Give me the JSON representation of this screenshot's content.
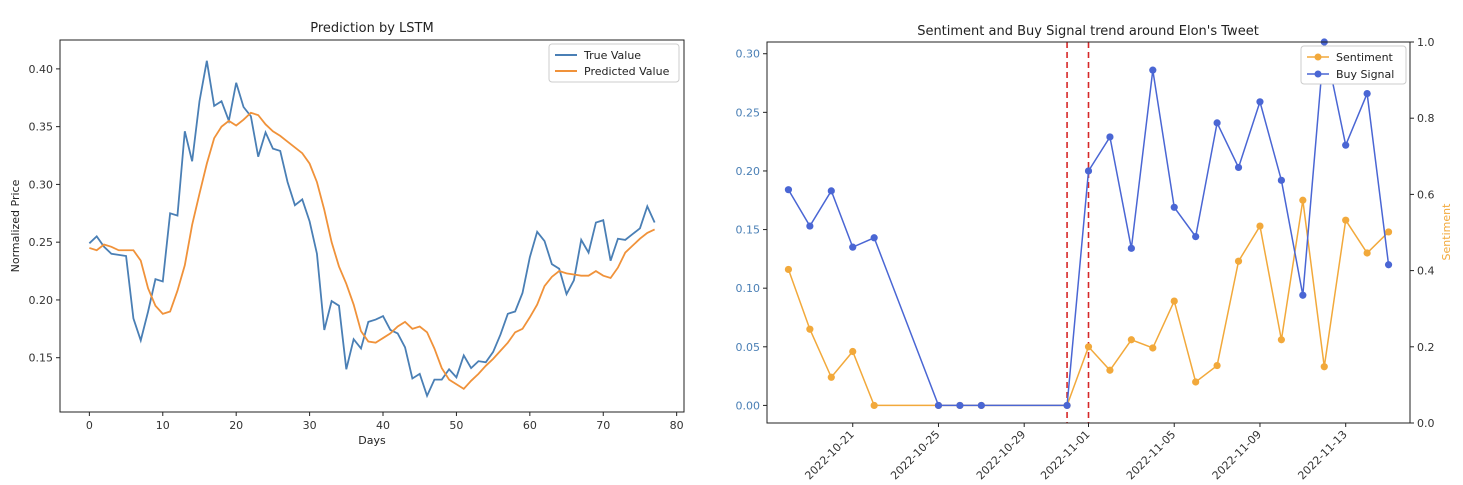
{
  "colors": {
    "true_value": "#4a7fb5",
    "predicted_value": "#f0923a",
    "sentiment": "#f2a93b",
    "buy_signal": "#4a66d4",
    "event_line": "#d62728",
    "left_axis_ticks": "#4a7fb5",
    "right_axis_label": "#f2a93b"
  },
  "chart_data": [
    {
      "type": "line",
      "title": "Prediction by LSTM",
      "xlabel": "Days",
      "ylabel": "Normalized Price",
      "xlim": [
        -4,
        81
      ],
      "ylim": [
        0.103,
        0.425
      ],
      "xticks": [
        0,
        10,
        20,
        30,
        40,
        50,
        60,
        70,
        80
      ],
      "yticks": [
        0.15,
        0.2,
        0.25,
        0.3,
        0.35,
        0.4
      ],
      "ytick_labels": [
        "0.15",
        "0.20",
        "0.25",
        "0.30",
        "0.35",
        "0.40"
      ],
      "legend_position": "top-right",
      "grid": false,
      "series": [
        {
          "name": "True Value",
          "color_key": "true_value",
          "x": [
            0,
            1,
            2,
            3,
            4,
            5,
            6,
            7,
            8,
            9,
            10,
            11,
            12,
            13,
            14,
            15,
            16,
            17,
            18,
            19,
            20,
            21,
            22,
            23,
            24,
            25,
            26,
            27,
            28,
            29,
            30,
            31,
            32,
            33,
            34,
            35,
            36,
            37,
            38,
            39,
            40,
            41,
            42,
            43,
            44,
            45,
            46,
            47,
            48,
            49,
            50,
            51,
            52,
            53,
            54,
            55,
            56,
            57,
            58,
            59,
            60,
            61,
            62,
            63,
            64,
            65,
            66,
            67,
            68,
            69,
            70,
            71,
            72,
            73,
            74,
            75,
            76,
            77
          ],
          "values": [
            0.249,
            0.255,
            0.246,
            0.24,
            0.239,
            0.238,
            0.184,
            0.165,
            0.19,
            0.218,
            0.216,
            0.275,
            0.273,
            0.346,
            0.32,
            0.372,
            0.407,
            0.368,
            0.372,
            0.355,
            0.388,
            0.367,
            0.359,
            0.324,
            0.345,
            0.331,
            0.329,
            0.302,
            0.282,
            0.287,
            0.268,
            0.24,
            0.174,
            0.199,
            0.195,
            0.14,
            0.166,
            0.158,
            0.181,
            0.183,
            0.186,
            0.174,
            0.171,
            0.159,
            0.132,
            0.136,
            0.117,
            0.131,
            0.131,
            0.14,
            0.133,
            0.152,
            0.141,
            0.147,
            0.146,
            0.155,
            0.17,
            0.188,
            0.19,
            0.206,
            0.237,
            0.259,
            0.251,
            0.231,
            0.227,
            0.205,
            0.217,
            0.252,
            0.241,
            0.267,
            0.269,
            0.234,
            0.253,
            0.252,
            0.257,
            0.262,
            0.281,
            0.267
          ]
        },
        {
          "name": "Predicted Value",
          "color_key": "predicted_value",
          "x": [
            0,
            1,
            2,
            3,
            4,
            5,
            6,
            7,
            8,
            9,
            10,
            11,
            12,
            13,
            14,
            15,
            16,
            17,
            18,
            19,
            20,
            21,
            22,
            23,
            24,
            25,
            26,
            27,
            28,
            29,
            30,
            31,
            32,
            33,
            34,
            35,
            36,
            37,
            38,
            39,
            40,
            41,
            42,
            43,
            44,
            45,
            46,
            47,
            48,
            49,
            50,
            51,
            52,
            53,
            54,
            55,
            56,
            57,
            58,
            59,
            60,
            61,
            62,
            63,
            64,
            65,
            66,
            67,
            68,
            69,
            70,
            71,
            72,
            73,
            74,
            75,
            76,
            77
          ],
          "values": [
            0.245,
            0.243,
            0.248,
            0.246,
            0.243,
            0.243,
            0.243,
            0.234,
            0.21,
            0.195,
            0.188,
            0.19,
            0.208,
            0.23,
            0.265,
            0.292,
            0.318,
            0.34,
            0.35,
            0.355,
            0.351,
            0.356,
            0.362,
            0.36,
            0.352,
            0.346,
            0.342,
            0.337,
            0.332,
            0.327,
            0.318,
            0.302,
            0.278,
            0.25,
            0.229,
            0.214,
            0.196,
            0.173,
            0.164,
            0.163,
            0.167,
            0.171,
            0.177,
            0.181,
            0.175,
            0.177,
            0.172,
            0.158,
            0.141,
            0.131,
            0.127,
            0.123,
            0.13,
            0.136,
            0.143,
            0.149,
            0.156,
            0.163,
            0.172,
            0.175,
            0.185,
            0.196,
            0.212,
            0.22,
            0.225,
            0.223,
            0.222,
            0.221,
            0.221,
            0.225,
            0.221,
            0.219,
            0.228,
            0.241,
            0.247,
            0.253,
            0.258,
            0.261
          ]
        }
      ]
    },
    {
      "type": "line",
      "title": "Sentiment and Buy Signal trend around Elon's Tweet",
      "xlabel": "",
      "ylabel": "",
      "ylabel_right": "Sentiment",
      "x_start_date": "2022-10-18",
      "xlim_dates": [
        "2022-10-17",
        "2022-11-16"
      ],
      "ylim_left": [
        -0.015,
        0.31
      ],
      "ylim_right": [
        0.0,
        1.0
      ],
      "xticks": [
        "2022-10-21",
        "2022-10-25",
        "2022-10-29",
        "2022-11-01",
        "2022-11-05",
        "2022-11-09",
        "2022-11-13"
      ],
      "yticks_left": [
        0.0,
        0.05,
        0.1,
        0.15,
        0.2,
        0.25,
        0.3
      ],
      "ytick_labels_left": [
        "0.00",
        "0.05",
        "0.10",
        "0.15",
        "0.20",
        "0.25",
        "0.30"
      ],
      "yticks_right": [
        0.0,
        0.2,
        0.4,
        0.6,
        0.8,
        1.0
      ],
      "ytick_labels_right": [
        "0.0",
        "0.2",
        "0.4",
        "0.6",
        "0.8",
        "1.0"
      ],
      "vertical_lines_dates": [
        "2022-10-31",
        "2022-11-01"
      ],
      "legend_position": "top-right",
      "grid": false,
      "series": [
        {
          "name": "Sentiment",
          "color_key": "sentiment",
          "axis": "left",
          "x": [
            "2022-10-18",
            "2022-10-19",
            "2022-10-20",
            "2022-10-21",
            "2022-10-22",
            "2022-10-25",
            "2022-10-26",
            "2022-10-27",
            "2022-10-31",
            "2022-11-01",
            "2022-11-02",
            "2022-11-03",
            "2022-11-04",
            "2022-11-05",
            "2022-11-06",
            "2022-11-07",
            "2022-11-08",
            "2022-11-09",
            "2022-11-10",
            "2022-11-11",
            "2022-11-12",
            "2022-11-13",
            "2022-11-14",
            "2022-11-15"
          ],
          "values": [
            0.116,
            0.065,
            0.024,
            0.046,
            0.0,
            0.0,
            0.0,
            0.0,
            0.0,
            0.05,
            0.03,
            0.056,
            0.049,
            0.089,
            0.02,
            0.034,
            0.123,
            0.153,
            0.056,
            0.175,
            0.033,
            0.158,
            0.13,
            0.148
          ]
        },
        {
          "name": "Buy Signal",
          "color_key": "buy_signal",
          "axis": "left",
          "x": [
            "2022-10-18",
            "2022-10-19",
            "2022-10-20",
            "2022-10-21",
            "2022-10-22",
            "2022-10-25",
            "2022-10-26",
            "2022-10-27",
            "2022-10-31",
            "2022-11-01",
            "2022-11-02",
            "2022-11-03",
            "2022-11-04",
            "2022-11-05",
            "2022-11-06",
            "2022-11-07",
            "2022-11-08",
            "2022-11-09",
            "2022-11-10",
            "2022-11-11",
            "2022-11-12",
            "2022-11-13",
            "2022-11-14",
            "2022-11-15"
          ],
          "values": [
            0.184,
            0.153,
            0.183,
            0.135,
            0.143,
            0.0,
            0.0,
            0.0,
            0.0,
            0.2,
            0.229,
            0.134,
            0.286,
            0.169,
            0.144,
            0.241,
            0.203,
            0.259,
            0.192,
            0.094,
            0.31,
            0.222,
            0.266,
            0.12
          ]
        }
      ]
    }
  ]
}
